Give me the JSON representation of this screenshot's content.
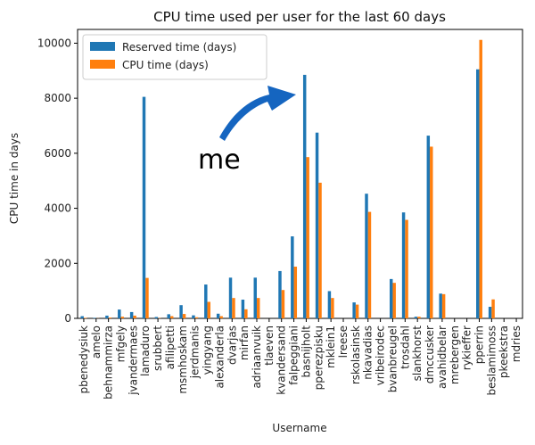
{
  "chart_data": {
    "type": "bar",
    "title": "CPU time used per user for the last 60 days",
    "xlabel": "Username",
    "ylabel": "CPU time in days",
    "ylim": [
      0,
      10500
    ],
    "yticks": [
      0,
      2000,
      4000,
      6000,
      8000,
      10000
    ],
    "grid": false,
    "legend_position": "top-left",
    "categories": [
      "pbenedysiuk",
      "amelo",
      "behnammirza",
      "mfgely",
      "jvandermaes",
      "lamaduro",
      "srubbert",
      "afilipetti",
      "msmhoskam",
      "jerdmanis",
      "yingyang",
      "alexanderla",
      "dvarjas",
      "mirfan",
      "adriaanvuik",
      "tlaeven",
      "kvandersand",
      "falpeggiani",
      "basnijholt",
      "pperezpisku",
      "mklein1",
      "lreese",
      "rskolasinsk",
      "nkavadias",
      "vribeirodec",
      "bvanbreugel",
      "trosdahl",
      "slankhorst",
      "dmccusker",
      "avahidbelar",
      "mrebergen",
      "rykieffer",
      "pperrin",
      "beslamimoss",
      "pkeekstra",
      "mdries"
    ],
    "series": [
      {
        "name": "Reserved time (days)",
        "color": "#1f77b4",
        "values": [
          80,
          20,
          100,
          320,
          230,
          8050,
          50,
          150,
          480,
          110,
          1230,
          170,
          1480,
          680,
          1480,
          0,
          1720,
          2980,
          8850,
          6750,
          990,
          0,
          580,
          4530,
          0,
          1430,
          3850,
          60,
          6640,
          900,
          0,
          0,
          9050,
          420,
          0,
          0
        ]
      },
      {
        "name": "CPU time (days)",
        "color": "#ff7f0e",
        "values": [
          20,
          5,
          30,
          60,
          100,
          1470,
          10,
          80,
          160,
          40,
          600,
          80,
          740,
          330,
          740,
          0,
          1030,
          1880,
          5860,
          4930,
          740,
          0,
          500,
          3870,
          0,
          1290,
          3580,
          60,
          6240,
          880,
          0,
          0,
          10120,
          690,
          0,
          0
        ]
      }
    ]
  },
  "annotation": {
    "text": "me",
    "arrow_color": "#1565c0",
    "arrow_icon": "curved-arrow-icon"
  }
}
